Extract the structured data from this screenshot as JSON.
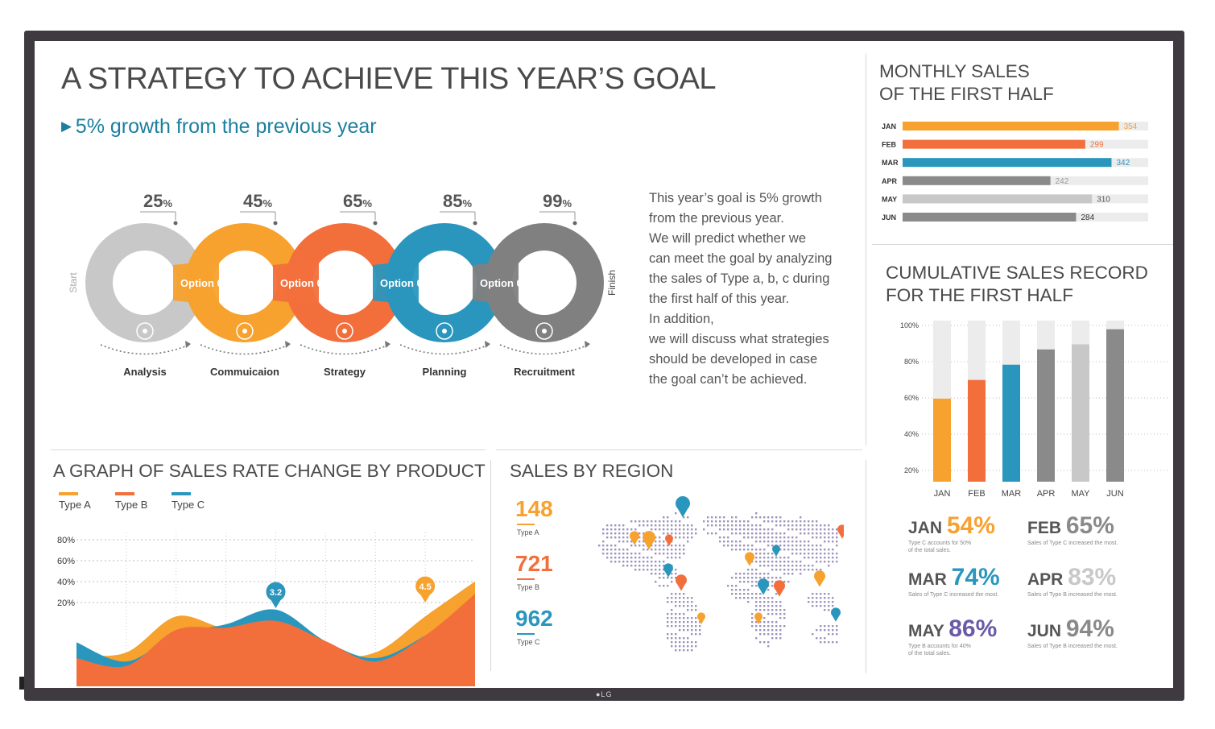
{
  "header": {
    "title": "A STRATEGY TO ACHIEVE THIS YEAR’S GOAL",
    "subtitle": "5% growth from the previous year",
    "description": "This year’s goal is 5% growth\nfrom the previous year.\nWe will predict whether we\ncan meet the goal by analyzing\nthe sales of Type a, b, c during\nthe first half of this year.\nIn addition,\nwe will discuss what strategies\nshould be developed in case\nthe goal can’t be achieved."
  },
  "process": {
    "start_label": "Start",
    "finish_label": "Finish",
    "percent_suffix": "%",
    "steps": [
      {
        "percent": "25",
        "option": "",
        "label": "Analysis",
        "color": "#c8c8c8",
        "icon": "money-bag-icon"
      },
      {
        "percent": "45",
        "option": "Option 01",
        "label": "Commuicaion",
        "color": "#f7a12e",
        "icon": "flask-icon"
      },
      {
        "percent": "65",
        "option": "Option 02",
        "label": "Strategy",
        "color": "#f26f3c",
        "icon": "clock-icon"
      },
      {
        "percent": "85",
        "option": "Option 03",
        "label": "Planning",
        "color": "#2a96bd",
        "icon": "database-icon"
      },
      {
        "percent": "99",
        "option": "Option 04",
        "label": "Recruitment",
        "color": "#808080",
        "icon": "lightbulb-icon"
      }
    ]
  },
  "monthly": {
    "title_line1": "MONTHLY SALES",
    "title_line2": "OF THE FIRST HALF"
  },
  "cumulative": {
    "title_line1": "CUMULATIVE SALES RECORD",
    "title_line2": "FOR THE FIRST HALF",
    "stats": [
      {
        "month": "JAN",
        "percent": "54%",
        "note": "Type C accounts for 50%\nof the total sales.",
        "color": "#f7a12e"
      },
      {
        "month": "FEB",
        "percent": "65%",
        "note": "Sales of Type C increased the most.",
        "color": "#8a8a8a"
      },
      {
        "month": "MAR",
        "percent": "74%",
        "note": "Sales of Type C increased the most.",
        "color": "#2a96bd"
      },
      {
        "month": "APR",
        "percent": "83%",
        "note": "Sales of Type B increased the most.",
        "color": "#c8c8c8"
      },
      {
        "month": "MAY",
        "percent": "86%",
        "note": "Type B accounts for 40%\nof the total sales.",
        "color": "#6b5aa8"
      },
      {
        "month": "JUN",
        "percent": "94%",
        "note": "Sales of Type B increased the most.",
        "color": "#8a8a8a"
      }
    ]
  },
  "rate": {
    "title": "A GRAPH OF SALES RATE CHANGE BY PRODUCT"
  },
  "region": {
    "title": "SALES BY REGION",
    "stats": [
      {
        "value": "148",
        "type": "Type A",
        "color": "#f7a12e"
      },
      {
        "value": "721",
        "type": "Type B",
        "color": "#f26f3c"
      },
      {
        "value": "962",
        "type": "Type C",
        "color": "#2a96bd"
      }
    ]
  },
  "chart_data": [
    {
      "type": "bar",
      "title": "MONTHLY SALES OF THE FIRST HALF",
      "categories": [
        "JAN",
        "FEB",
        "MAR",
        "APR",
        "MAY",
        "JUN"
      ],
      "values": [
        354,
        299,
        342,
        242,
        310,
        284
      ],
      "max": 400,
      "colors": [
        "#f7a12e",
        "#f26f3c",
        "#2a96bd",
        "#8a8a8a",
        "#c8c8c8",
        "#8a8a8a"
      ]
    },
    {
      "type": "bar",
      "title": "CUMULATIVE SALES RECORD FOR THE FIRST HALF",
      "categories": [
        "JAN",
        "FEB",
        "MAR",
        "APR",
        "MAY",
        "JUN"
      ],
      "values": [
        54,
        65,
        74,
        83,
        86,
        94
      ],
      "y_ticks": [
        "100%",
        "80%",
        "60%",
        "40%",
        "20%"
      ],
      "ylim": [
        20,
        100
      ],
      "grid": true,
      "colors": [
        "#f7a12e",
        "#f26f3c",
        "#2a96bd",
        "#8a8a8a",
        "#c8c8c8",
        "#8a8a8a"
      ]
    },
    {
      "type": "area",
      "title": "A GRAPH OF SALES RATE CHANGE BY PRODUCT",
      "x": [
        0,
        10,
        20,
        30,
        40,
        50,
        60,
        70,
        80
      ],
      "x_ticks": [
        "10",
        "20",
        "30",
        "40",
        "50",
        "60",
        "70"
      ],
      "y_ticks": [
        "80%",
        "60%",
        "40%",
        "20%"
      ],
      "ylim": [
        0,
        100
      ],
      "legend_position": "top-left",
      "series": [
        {
          "name": "Type A",
          "color": "#f7a12e",
          "values": [
            28,
            30,
            62,
            52,
            60,
            30,
            30,
            62,
            93
          ]
        },
        {
          "name": "Type C",
          "color": "#2a96bd",
          "values": [
            39,
            22,
            46,
            55,
            68,
            40,
            25,
            45,
            75
          ]
        },
        {
          "name": "Type B",
          "color": "#f26f3c",
          "values": [
            25,
            18,
            50,
            52,
            58,
            40,
            22,
            45,
            82
          ]
        }
      ],
      "annotations": [
        {
          "x": 40,
          "label": "3.2",
          "color": "#2a96bd"
        },
        {
          "x": 70,
          "label": "4.5",
          "color": "#f7a12e"
        }
      ]
    }
  ]
}
